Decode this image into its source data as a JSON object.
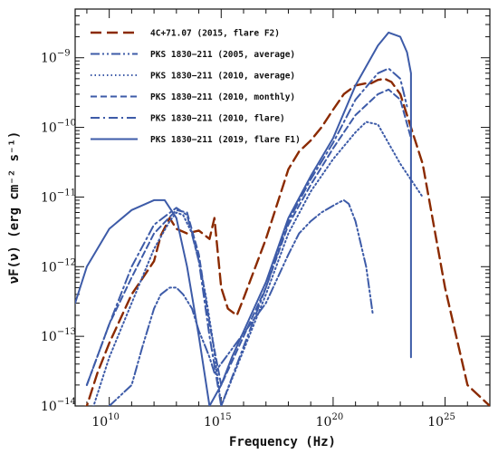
{
  "chart_data": {
    "type": "line",
    "xlabel": "Frequency (Hz)",
    "ylabel": "νF(ν) (erg cm⁻² s⁻¹)",
    "x_scale": "log",
    "y_scale": "log",
    "xlim": [
      300000000,
      1e+27
    ],
    "ylim": [
      1e-14,
      5e-09
    ],
    "x_ticks": [
      {
        "base": "10",
        "exp": "10",
        "value": 10000000000.0
      },
      {
        "base": "10",
        "exp": "15",
        "value": 1000000000000000.0
      },
      {
        "base": "10",
        "exp": "20",
        "value": 1e+20
      },
      {
        "base": "10",
        "exp": "25",
        "value": 1e+25
      }
    ],
    "y_ticks": [
      {
        "base": "10",
        "exp": "−9",
        "value": 1e-09
      },
      {
        "base": "10",
        "exp": "−10",
        "value": 1e-10
      },
      {
        "base": "10",
        "exp": "−11",
        "value": 1e-11
      },
      {
        "base": "10",
        "exp": "−12",
        "value": 1e-12
      },
      {
        "base": "10",
        "exp": "−13",
        "value": 1e-13
      },
      {
        "base": "10",
        "exp": "−14",
        "value": 1e-14
      }
    ],
    "grid": false,
    "legend_position": "top-left",
    "series": [
      {
        "name": "4C+71.07 (2015, flare F2)",
        "color": "#8b2a00",
        "dash": "long-dash",
        "x": [
          100000000.0,
          1000000000.0,
          3000000000.0,
          10000000000.0,
          100000000000.0,
          1000000000000.0,
          2000000000000.0,
          5000000000000.0,
          10000000000000.0,
          30000000000000.0,
          100000000000000.0,
          300000000000000.0,
          500000000000000.0,
          1000000000000000.0,
          2000000000000000.0,
          5000000000000000.0,
          1e+16,
          1e+17,
          1e+18,
          3e+18,
          1e+19,
          3e+19,
          1e+20,
          3e+20,
          1e+21,
          3e+21,
          5e+21,
          1e+22,
          2e+22,
          4e+22,
          1e+23,
          1e+24,
          1e+25,
          1e+26,
          1e+27
        ],
        "y": [
          7e-15,
          1e-14,
          3e-14,
          8e-14,
          4e-13,
          1.2e-12,
          2.8e-12,
          5e-12,
          3.5e-12,
          3e-12,
          3.3e-12,
          2.5e-12,
          5e-12,
          5e-13,
          2.5e-13,
          2e-13,
          3.5e-13,
          2.5e-12,
          2.5e-11,
          4.5e-11,
          6.5e-11,
          1e-10,
          1.8e-10,
          3e-10,
          4e-10,
          4.3e-10,
          4.3e-10,
          4.8e-10,
          5e-10,
          4.5e-10,
          3e-10,
          3e-11,
          5e-13,
          2e-14,
          1e-14
        ]
      },
      {
        "name": "PKS 1830−211 (2005, average)",
        "color": "#3d5ba8",
        "dash": "dash-dot-dot",
        "x": [
          10000000000.0,
          100000000000.0,
          300000000000.0,
          1000000000000.0,
          2000000000000.0,
          5000000000000.0,
          10000000000000.0,
          20000000000000.0,
          50000000000000.0,
          100000000000000.0,
          200000000000000.0,
          300000000000000.0,
          500000000000000.0,
          1e+17,
          1e+18,
          3e+18,
          1e+19,
          3e+19,
          1e+20,
          2e+20,
          3e+20,
          5e+20,
          1e+21,
          3e+21,
          6e+21
        ],
        "y": [
          1e-14,
          2e-14,
          7e-14,
          2.5e-13,
          4e-13,
          5e-13,
          5e-13,
          4e-13,
          2.5e-13,
          1.2e-13,
          7e-14,
          5e-14,
          3e-14,
          3e-13,
          1.5e-12,
          3e-12,
          4.5e-12,
          6e-12,
          7.5e-12,
          8.5e-12,
          9e-12,
          8e-12,
          4.5e-12,
          1e-12,
          2e-13
        ]
      },
      {
        "name": "PKS 1830−211 (2010, average)",
        "color": "#3d5ba8",
        "dash": "dotted",
        "x": [
          1000000000.0,
          10000000000.0,
          100000000000.0,
          1000000000000.0,
          5000000000000.0,
          10000000000000.0,
          20000000000000.0,
          50000000000000.0,
          100000000000000.0,
          200000000000000.0,
          400000000000000.0,
          1000000000000000.0,
          1e+17,
          1e+18,
          1e+19,
          1e+20,
          1e+21,
          3e+21,
          1e+22,
          1e+23,
          1e+24
        ],
        "y": [
          5e-15,
          5e-14,
          3e-13,
          1.8e-12,
          4.5e-12,
          6e-12,
          5.5e-12,
          3e-12,
          1.2e-12,
          4e-13,
          1e-13,
          1e-14,
          4e-13,
          3e-12,
          1.2e-11,
          3.5e-11,
          8.5e-11,
          1.2e-10,
          1.1e-10,
          3e-11,
          1e-11
        ]
      },
      {
        "name": "PKS 1830−211 (2010, monthly)",
        "color": "#3d5ba8",
        "dash": "short-dash",
        "x": [
          1000000000.0,
          10000000000.0,
          100000000000.0,
          1000000000000.0,
          10000000000000.0,
          30000000000000.0,
          100000000000000.0,
          300000000000000.0,
          1000000000000000.0,
          1e+17,
          1e+18,
          1e+19,
          1e+20,
          1e+21,
          1e+22,
          3e+22,
          1e+23,
          3e+23
        ],
        "y": [
          2e-14,
          1.5e-13,
          7e-13,
          3e-12,
          6.5e-12,
          6e-12,
          1.5e-12,
          1.5e-13,
          2e-14,
          5e-13,
          4e-12,
          1.5e-11,
          5e-11,
          1.5e-10,
          3e-10,
          3.5e-10,
          2.5e-10,
          7e-11
        ]
      },
      {
        "name": "PKS 1830−211 (2010, flare)",
        "color": "#3d5ba8",
        "dash": "dash-dot",
        "x": [
          1000000000.0,
          10000000000.0,
          100000000000.0,
          1000000000000.0,
          10000000000000.0,
          30000000000000.0,
          100000000000000.0,
          300000000000000.0,
          1000000000000000.0,
          1e+17,
          1e+18,
          1e+19,
          1e+20,
          1e+21,
          1e+22,
          3e+22,
          1e+23,
          2e+23
        ],
        "y": [
          2e-14,
          1.5e-13,
          1e-12,
          4e-12,
          7e-12,
          5.5e-12,
          1.2e-12,
          1e-13,
          1e-14,
          5e-13,
          4.5e-12,
          1.8e-11,
          6e-11,
          2.5e-10,
          6e-10,
          7e-10,
          5e-10,
          2e-10
        ]
      },
      {
        "name": "PKS 1830−211 (2019, flare F1)",
        "color": "#3d5ba8",
        "dash": "solid",
        "x": [
          300000000.0,
          1000000000.0,
          10000000000.0,
          100000000000.0,
          1000000000000.0,
          3000000000000.0,
          10000000000000.0,
          30000000000000.0,
          100000000000000.0,
          300000000000000.0,
          1000000000000000.0,
          3000000000000000.0,
          1e+17,
          1e+18,
          1e+19,
          1e+20,
          1e+21,
          1e+22,
          3e+22,
          1e+23,
          2e+23,
          3e+23,
          3e+23
        ],
        "y": [
          3e-13,
          1e-12,
          3.5e-12,
          6.5e-12,
          9e-12,
          9e-12,
          5e-12,
          1e-12,
          1e-13,
          1e-14,
          2e-14,
          5e-14,
          6e-13,
          5e-12,
          2e-11,
          7e-11,
          4e-10,
          1.5e-09,
          2.3e-09,
          2e-09,
          1.2e-09,
          6e-10,
          5e-14
        ]
      }
    ]
  }
}
